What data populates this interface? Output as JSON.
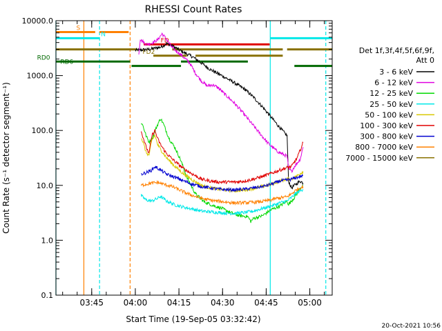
{
  "chart_data": {
    "type": "line",
    "title": "RHESSI Count Rates",
    "xlabel": "Start Time (19-Sep-05 03:32:42)",
    "ylabel": "Count Rate (s⁻¹ detector segment⁻¹)",
    "timestamp": "20-Oct-2021 10:56",
    "x_unit": "minutes since 03:32:42",
    "xlim": [
      0,
      95
    ],
    "ylim": [
      0.1,
      10000
    ],
    "yscale": "log",
    "x_ticks": [
      {
        "label": "03:45",
        "value": 12.3
      },
      {
        "label": "04:00",
        "value": 27.3
      },
      {
        "label": "04:15",
        "value": 42.3
      },
      {
        "label": "04:30",
        "value": 57.3
      },
      {
        "label": "04:45",
        "value": 72.3
      },
      {
        "label": "05:00",
        "value": 87.3
      }
    ],
    "y_ticks": [
      {
        "label": "10000.0",
        "value": 10000
      },
      {
        "label": "1000.0",
        "value": 1000
      },
      {
        "label": "100.0",
        "value": 100
      },
      {
        "label": "10.0",
        "value": 10
      },
      {
        "label": "1.0",
        "value": 1
      },
      {
        "label": "0.1",
        "value": 0.1
      }
    ],
    "legend": {
      "header": [
        "Det 1f,3f,4f,5f,6f,9f,",
        "Att 0"
      ],
      "entries": [
        {
          "label": "3 - 6 keV",
          "color": "#000000"
        },
        {
          "label": "6 - 12 keV",
          "color": "#e000e0"
        },
        {
          "label": "12 - 25 keV",
          "color": "#00d800"
        },
        {
          "label": "25 - 50 keV",
          "color": "#00e8e8"
        },
        {
          "label": "50 - 100 keV",
          "color": "#d8c800"
        },
        {
          "label": "100 - 300 keV",
          "color": "#e00000"
        },
        {
          "label": "300 - 800 keV",
          "color": "#0000d0"
        },
        {
          "label": "800 - 7000 keV",
          "color": "#ff8000"
        },
        {
          "label": "7000 - 15000 keV",
          "color": "#887000"
        }
      ]
    },
    "series": [
      {
        "name": "3 - 6 keV",
        "color": "#000000",
        "points": [
          [
            27.3,
            2900
          ],
          [
            32,
            3000
          ],
          [
            36,
            3300
          ],
          [
            38,
            3800
          ],
          [
            40,
            3500
          ],
          [
            43,
            2800
          ],
          [
            47,
            2200
          ],
          [
            50,
            1700
          ],
          [
            53,
            1300
          ],
          [
            57,
            1000
          ],
          [
            61,
            760
          ],
          [
            65,
            560
          ],
          [
            68,
            400
          ],
          [
            71,
            270
          ],
          [
            74,
            175
          ],
          [
            76,
            130
          ],
          [
            78,
            98
          ],
          [
            79.5,
            80
          ],
          [
            80,
            12
          ],
          [
            81,
            9
          ],
          [
            82,
            10
          ],
          [
            84,
            12
          ],
          [
            85,
            11
          ]
        ]
      },
      {
        "name": "6 - 12 keV",
        "color": "#e000e0",
        "points": [
          [
            28.5,
            2500
          ],
          [
            29,
            4600
          ],
          [
            31,
            3700
          ],
          [
            33,
            3900
          ],
          [
            35,
            4500
          ],
          [
            36.5,
            5800
          ],
          [
            38,
            4600
          ],
          [
            40,
            3200
          ],
          [
            43,
            2400
          ],
          [
            46,
            1700
          ],
          [
            48,
            1100
          ],
          [
            50,
            800
          ],
          [
            52,
            650
          ],
          [
            54,
            680
          ],
          [
            56,
            590
          ],
          [
            58,
            460
          ],
          [
            61,
            330
          ],
          [
            64,
            220
          ],
          [
            67,
            140
          ],
          [
            70,
            90
          ],
          [
            73,
            58
          ],
          [
            76,
            42
          ],
          [
            78,
            37
          ],
          [
            79.5,
            34
          ],
          [
            80,
            20
          ],
          [
            81,
            18
          ],
          [
            82,
            22
          ],
          [
            84,
            30
          ],
          [
            85,
            50
          ]
        ]
      },
      {
        "name": "12 - 25 keV",
        "color": "#00d800",
        "points": [
          [
            29.3,
            140
          ],
          [
            30,
            120
          ],
          [
            31,
            80
          ],
          [
            32,
            62
          ],
          [
            33,
            70
          ],
          [
            35,
            130
          ],
          [
            36,
            165
          ],
          [
            37,
            130
          ],
          [
            38,
            95
          ],
          [
            39,
            70
          ],
          [
            41,
            48
          ],
          [
            43,
            28
          ],
          [
            45,
            14
          ],
          [
            48,
            7
          ],
          [
            51,
            5
          ],
          [
            54,
            4.3
          ],
          [
            57,
            3.8
          ],
          [
            60,
            3.2
          ],
          [
            63,
            2.8
          ],
          [
            66,
            2.7
          ],
          [
            67,
            2.2
          ],
          [
            68,
            2.5
          ],
          [
            71,
            2.8
          ],
          [
            74,
            3.6
          ],
          [
            77,
            4.2
          ],
          [
            79.5,
            5.2
          ],
          [
            80,
            4.5
          ],
          [
            82,
            6
          ],
          [
            84,
            9
          ],
          [
            85,
            10
          ]
        ]
      },
      {
        "name": "25 - 50 keV",
        "color": "#00e8e8",
        "points": [
          [
            29.3,
            6.5
          ],
          [
            31,
            5.4
          ],
          [
            33,
            5.2
          ],
          [
            35,
            5.8
          ],
          [
            36,
            6.3
          ],
          [
            38,
            5.2
          ],
          [
            41,
            4.4
          ],
          [
            44,
            4
          ],
          [
            47,
            3.7
          ],
          [
            50,
            3.4
          ],
          [
            53,
            3.3
          ],
          [
            56,
            3.2
          ],
          [
            59,
            3.1
          ],
          [
            62,
            3.1
          ],
          [
            65,
            3.2
          ],
          [
            68,
            3.4
          ],
          [
            71,
            3.8
          ],
          [
            74,
            4.2
          ],
          [
            77,
            4.8
          ],
          [
            79.5,
            5.2
          ],
          [
            81,
            6
          ],
          [
            83,
            7.5
          ],
          [
            85,
            8.5
          ]
        ]
      },
      {
        "name": "50 - 100 keV",
        "color": "#d8c800",
        "points": [
          [
            29.3,
            75
          ],
          [
            30,
            60
          ],
          [
            31,
            40
          ],
          [
            32,
            35
          ],
          [
            33,
            65
          ],
          [
            34,
            82
          ],
          [
            35,
            55
          ],
          [
            36,
            45
          ],
          [
            38,
            32
          ],
          [
            41,
            22
          ],
          [
            44,
            16
          ],
          [
            47,
            12.5
          ],
          [
            50,
            10
          ],
          [
            53,
            9
          ],
          [
            56,
            8.5
          ],
          [
            59,
            8.2
          ],
          [
            62,
            8
          ],
          [
            65,
            8.2
          ],
          [
            68,
            8.8
          ],
          [
            71,
            9.5
          ],
          [
            74,
            10.5
          ],
          [
            77,
            12
          ],
          [
            79.5,
            13
          ],
          [
            81,
            13
          ],
          [
            83,
            15
          ],
          [
            85,
            18
          ]
        ]
      },
      {
        "name": "100 - 300 keV",
        "color": "#e00000",
        "points": [
          [
            29.3,
            95
          ],
          [
            30,
            75
          ],
          [
            31,
            50
          ],
          [
            32,
            38
          ],
          [
            33,
            80
          ],
          [
            34,
            100
          ],
          [
            35,
            70
          ],
          [
            36,
            55
          ],
          [
            38,
            38
          ],
          [
            41,
            27
          ],
          [
            44,
            20
          ],
          [
            47,
            16
          ],
          [
            50,
            13
          ],
          [
            53,
            12
          ],
          [
            56,
            11.5
          ],
          [
            59,
            11.5
          ],
          [
            62,
            11.5
          ],
          [
            65,
            12
          ],
          [
            68,
            13
          ],
          [
            71,
            14.5
          ],
          [
            74,
            16.5
          ],
          [
            77,
            19
          ],
          [
            79.5,
            21
          ],
          [
            81,
            22
          ],
          [
            83,
            32
          ],
          [
            85,
            60
          ]
        ]
      },
      {
        "name": "300 - 800 keV",
        "color": "#0000d0",
        "points": [
          [
            29.3,
            16
          ],
          [
            31,
            17
          ],
          [
            33,
            19
          ],
          [
            34,
            22
          ],
          [
            36,
            19
          ],
          [
            38,
            16
          ],
          [
            41,
            14
          ],
          [
            44,
            12
          ],
          [
            47,
            10.5
          ],
          [
            50,
            9.5
          ],
          [
            53,
            9
          ],
          [
            56,
            8.5
          ],
          [
            59,
            8.3
          ],
          [
            62,
            8.3
          ],
          [
            65,
            8.5
          ],
          [
            68,
            9
          ],
          [
            71,
            9.5
          ],
          [
            74,
            10.5
          ],
          [
            77,
            12
          ],
          [
            79.5,
            12.5
          ],
          [
            81,
            13
          ],
          [
            83,
            14
          ],
          [
            85,
            15
          ]
        ]
      },
      {
        "name": "800 - 7000 keV",
        "color": "#ff8000",
        "points": [
          [
            29.3,
            10
          ],
          [
            31,
            10.5
          ],
          [
            33,
            11
          ],
          [
            35,
            11.3
          ],
          [
            37,
            10.5
          ],
          [
            40,
            9.5
          ],
          [
            43,
            8
          ],
          [
            46,
            6.8
          ],
          [
            49,
            6
          ],
          [
            52,
            5.5
          ],
          [
            55,
            5.2
          ],
          [
            58,
            5
          ],
          [
            61,
            4.8
          ],
          [
            64,
            4.8
          ],
          [
            67,
            4.9
          ],
          [
            70,
            5
          ],
          [
            73,
            5.3
          ],
          [
            76,
            5.8
          ],
          [
            79.5,
            6.2
          ],
          [
            81,
            7
          ],
          [
            83,
            8.5
          ],
          [
            85,
            9.5
          ]
        ]
      }
    ],
    "flag_bars": [
      {
        "label": "S",
        "color": "#ff8000",
        "segments": [
          [
            0,
            13.5
          ],
          [
            15,
            25
          ]
        ],
        "level": 6200,
        "label_x": 7
      },
      {
        "label": "N",
        "color": "#00e8e8",
        "segments": [
          [
            0,
            15
          ],
          [
            73.7,
            95
          ]
        ],
        "level": 4800,
        "label_x": 15.5
      },
      {
        "label": "FD",
        "color": "#e00000",
        "segments": [
          [
            30.2,
            73.5
          ]
        ],
        "level": 3700,
        "label_x": 36
      },
      {
        "label": "",
        "color": "#887000",
        "segments": [
          [
            0,
            28
          ],
          [
            40,
            78
          ],
          [
            79.5,
            95
          ]
        ],
        "level": 3000
      },
      {
        "label": "FD2",
        "color": "#887000",
        "segments": [
          [
            33.5,
            45
          ],
          [
            48,
            78
          ]
        ],
        "level": 2300,
        "label_x": 29.8
      },
      {
        "label": "RD0",
        "color": "#006800",
        "segments": [
          [
            0,
            25.5
          ],
          [
            43,
            66
          ]
        ],
        "level": 1800,
        "label_x": -6.5
      },
      {
        "label": "RD6",
        "color": "#006800",
        "segments": [
          [
            26,
            43
          ],
          [
            82,
            95
          ]
        ],
        "level": 1500,
        "label_x": 1.5
      }
    ],
    "vlines": [
      {
        "x": 0,
        "color": "#00e8e8",
        "style": "solid"
      },
      {
        "x": 9.6,
        "color": "#ff8000",
        "style": "solid"
      },
      {
        "x": 15,
        "color": "#00e8e8",
        "style": "dashed"
      },
      {
        "x": 25.5,
        "color": "#ff8000",
        "style": "dashed"
      },
      {
        "x": 73.7,
        "color": "#00e8e8",
        "style": "solid"
      },
      {
        "x": 92.8,
        "color": "#00e8e8",
        "style": "dashed"
      }
    ]
  }
}
